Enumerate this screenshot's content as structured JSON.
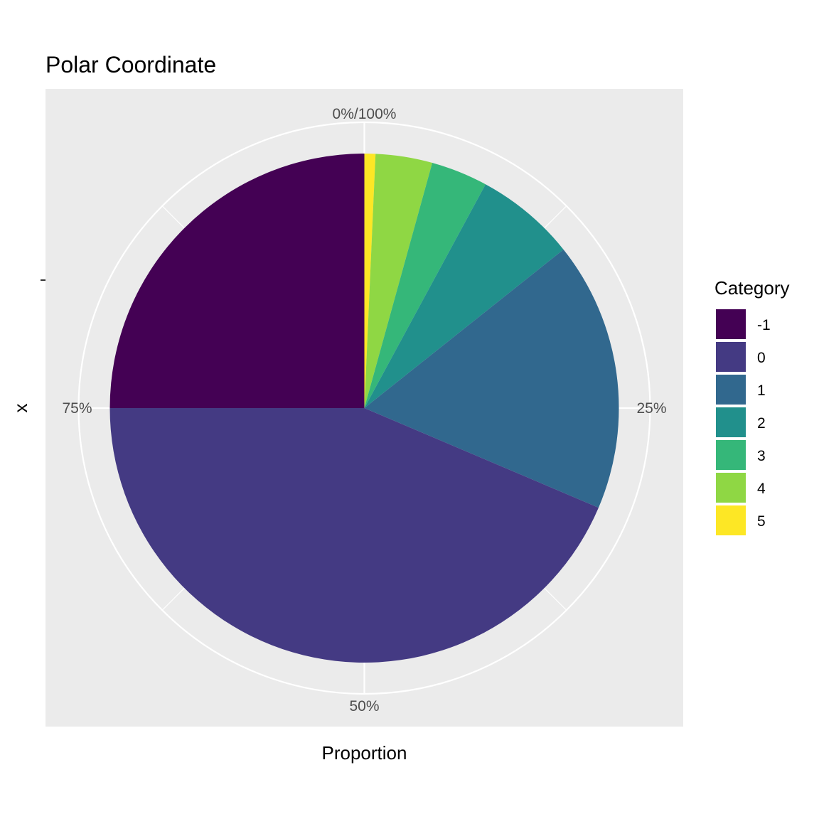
{
  "chart_data": {
    "type": "pie",
    "title": "Polar Coordinate",
    "xlabel": "Proportion",
    "ylabel": "x",
    "coordinate": "polar",
    "grid": true,
    "angle_ticks": [
      {
        "value": 0,
        "label": "0%/100%"
      },
      {
        "value": 0.25,
        "label": "25%"
      },
      {
        "value": 0.5,
        "label": "50%"
      },
      {
        "value": 0.75,
        "label": "75%"
      }
    ],
    "legend": {
      "title": "Category",
      "position": "right"
    },
    "slices": [
      {
        "label": "5",
        "value": 0.007,
        "color": "#FDE725"
      },
      {
        "label": "4",
        "value": 0.036,
        "color": "#8FD744"
      },
      {
        "label": "3",
        "value": 0.036,
        "color": "#35B779"
      },
      {
        "label": "2",
        "value": 0.064,
        "color": "#21908C"
      },
      {
        "label": "1",
        "value": 0.171,
        "color": "#31688E"
      },
      {
        "label": "0",
        "value": 0.436,
        "color": "#443A83"
      },
      {
        "label": "-1",
        "value": 0.25,
        "color": "#440154"
      }
    ],
    "legend_order": [
      "-1",
      "0",
      "1",
      "2",
      "3",
      "4",
      "5"
    ]
  }
}
